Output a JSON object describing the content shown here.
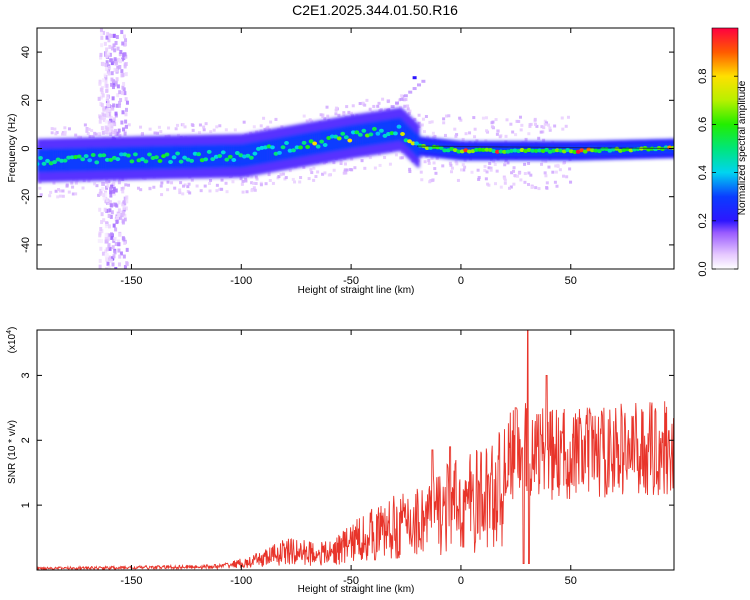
{
  "title": "C2E1.2025.344.01.50.R16",
  "chart_data": [
    {
      "type": "heatmap",
      "name": "spectrogram",
      "xlabel": "Height of straight line (km)",
      "ylabel": "Frequency (Hz)",
      "xlim": [
        -193,
        97
      ],
      "ylim": [
        -50,
        50
      ],
      "x_ticks": [
        -150,
        -100,
        -50,
        0,
        50
      ],
      "y_ticks": [
        -40,
        -20,
        0,
        20,
        40
      ],
      "colorbar": {
        "label": "Normalized spectral amplitude",
        "range": [
          0,
          1
        ],
        "ticks": [
          0.0,
          0.2,
          0.4,
          0.6,
          0.8
        ],
        "tick_labels": [
          "0.0",
          "0.2",
          "0.4",
          "0.6",
          "0.8"
        ]
      },
      "ridge": {
        "description_points_x": [
          -193,
          -150,
          -100,
          -75,
          -50,
          -35,
          -28,
          -20,
          0,
          50,
          95
        ],
        "description_points_y": [
          -5,
          -4,
          -3,
          1,
          5,
          7,
          8,
          1,
          -1,
          -1,
          0
        ]
      }
    },
    {
      "type": "line",
      "name": "snr",
      "xlabel": "Height of straight line (km)",
      "ylabel": "SNR (10 * v/v)",
      "scale_label": "(x10",
      "scale_exponent": "4",
      "xlim": [
        -193,
        97
      ],
      "ylim": [
        0,
        3.7
      ],
      "x_ticks": [
        -150,
        -100,
        -50,
        0,
        50
      ],
      "y_ticks": [
        1,
        2,
        3
      ],
      "color": "#e8342a",
      "envelope": [
        {
          "x": -193,
          "y": 0.03
        },
        {
          "x": -150,
          "y": 0.04
        },
        {
          "x": -110,
          "y": 0.06
        },
        {
          "x": -100,
          "y": 0.12
        },
        {
          "x": -80,
          "y": 0.45
        },
        {
          "x": -60,
          "y": 0.4
        },
        {
          "x": -45,
          "y": 0.8
        },
        {
          "x": -30,
          "y": 1.05
        },
        {
          "x": -20,
          "y": 1.2
        },
        {
          "x": -10,
          "y": 1.45
        },
        {
          "x": 0,
          "y": 1.6
        },
        {
          "x": 10,
          "y": 1.75
        },
        {
          "x": 20,
          "y": 2.05
        },
        {
          "x": 30,
          "y": 2.3
        },
        {
          "x": 40,
          "y": 2.15
        },
        {
          "x": 60,
          "y": 2.2
        },
        {
          "x": 80,
          "y": 2.25
        },
        {
          "x": 97,
          "y": 2.3
        }
      ],
      "spikes": [
        {
          "x": 30.5,
          "y": 3.7
        },
        {
          "x": 31,
          "y": 0.1
        },
        {
          "x": 28.5,
          "y": 0.1
        },
        {
          "x": 39,
          "y": 3.0
        },
        {
          "x": 25,
          "y": 2.5
        },
        {
          "x": -13,
          "y": 1.85
        },
        {
          "x": -5,
          "y": 1.9
        }
      ]
    }
  ]
}
